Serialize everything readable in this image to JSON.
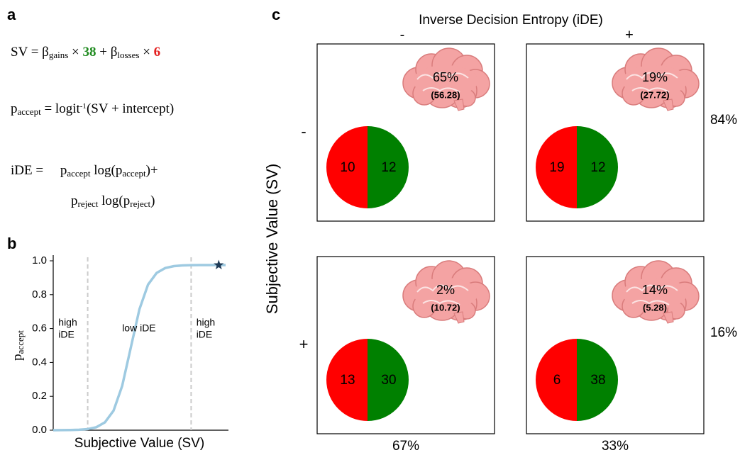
{
  "panel_a": {
    "label": "a",
    "equations": [
      [
        {
          "text": "SV = β"
        },
        {
          "text": "gains",
          "style": "sub"
        },
        {
          "text": " × "
        },
        {
          "text": "38",
          "color": "#1e8a1e",
          "bold": true
        },
        {
          "text": " + β"
        },
        {
          "text": "losses",
          "style": "sub"
        },
        {
          "text": " × "
        },
        {
          "text": "6",
          "color": "#e32020",
          "bold": true
        }
      ],
      [
        {
          "text": "p"
        },
        {
          "text": "accept",
          "style": "sub"
        },
        {
          "text": " = logit"
        },
        {
          "text": "-1",
          "style": "sup"
        },
        {
          "text": "(SV + intercept)"
        }
      ],
      [
        {
          "text": "iDE =     p"
        },
        {
          "text": "accept",
          "style": "sub"
        },
        {
          "text": " log(p"
        },
        {
          "text": "accept",
          "style": "sub"
        },
        {
          "text": ")+"
        }
      ],
      [
        {
          "text": "p"
        },
        {
          "text": "reject",
          "style": "sub"
        },
        {
          "text": " log(p"
        },
        {
          "text": "reject",
          "style": "sub"
        },
        {
          "text": ")"
        }
      ]
    ]
  },
  "panel_b": {
    "label": "b",
    "chart_data": {
      "type": "line",
      "xlabel": "Subjective Value (SV)",
      "ylabel": [
        {
          "text": "p"
        },
        {
          "text": "accept",
          "style": "sub"
        }
      ],
      "x": [
        0,
        5,
        10,
        15,
        20,
        25,
        30,
        35,
        40,
        45,
        50,
        55,
        60,
        65,
        70,
        75,
        80,
        85,
        90,
        95,
        100
      ],
      "values": [
        0.0,
        0.0003,
        0.0009,
        0.0024,
        0.0065,
        0.0175,
        0.0463,
        0.1153,
        0.2613,
        0.4875,
        0.7137,
        0.8597,
        0.9287,
        0.9574,
        0.9686,
        0.9728,
        0.9743,
        0.9748,
        0.975,
        0.975,
        0.975
      ],
      "color": "#9ecae1",
      "marker": {
        "x": 96,
        "y": 0.975,
        "color": "#1f3b57"
      },
      "xlim": [
        0,
        100
      ],
      "ylim": [
        0,
        1
      ],
      "yticks": [
        {
          "value": 0,
          "label": "0.0"
        },
        {
          "value": 0.2,
          "label": "0.2"
        },
        {
          "value": 0.4,
          "label": "0.4"
        },
        {
          "value": 0.6,
          "label": "0.6"
        },
        {
          "value": 0.8,
          "label": "0.8"
        },
        {
          "value": 1,
          "label": "1.0"
        }
      ],
      "vlines": [
        20,
        80
      ],
      "annotations": [
        {
          "text": [
            "high",
            "iDE"
          ],
          "x": 3,
          "y": 0.6
        },
        {
          "text": [
            "low iDE"
          ],
          "x": 40,
          "y": 0.6
        },
        {
          "text": [
            "high",
            "iDE"
          ],
          "x": 83,
          "y": 0.6
        }
      ]
    }
  },
  "panel_c": {
    "label": "c",
    "title": "Inverse Decision Entropy (iDE)",
    "column_headers": [
      "-",
      "+"
    ],
    "row_title": "Subjective Value (SV)",
    "row_headers": [
      "-",
      "+"
    ],
    "row_totals": [
      "84%",
      "16%"
    ],
    "column_totals": [
      "67%",
      "33%"
    ],
    "cells": [
      [
        {
          "percent": "65%",
          "value": "(56.28)",
          "red": "10",
          "green": "12"
        },
        {
          "percent": "19%",
          "value": "(27.72)",
          "red": "19",
          "green": "12"
        }
      ],
      [
        {
          "percent": "2%",
          "value": "(10.72)",
          "red": "13",
          "green": "30"
        },
        {
          "percent": "14%",
          "value": "(5.28)",
          "red": "6",
          "green": "38"
        }
      ]
    ]
  }
}
